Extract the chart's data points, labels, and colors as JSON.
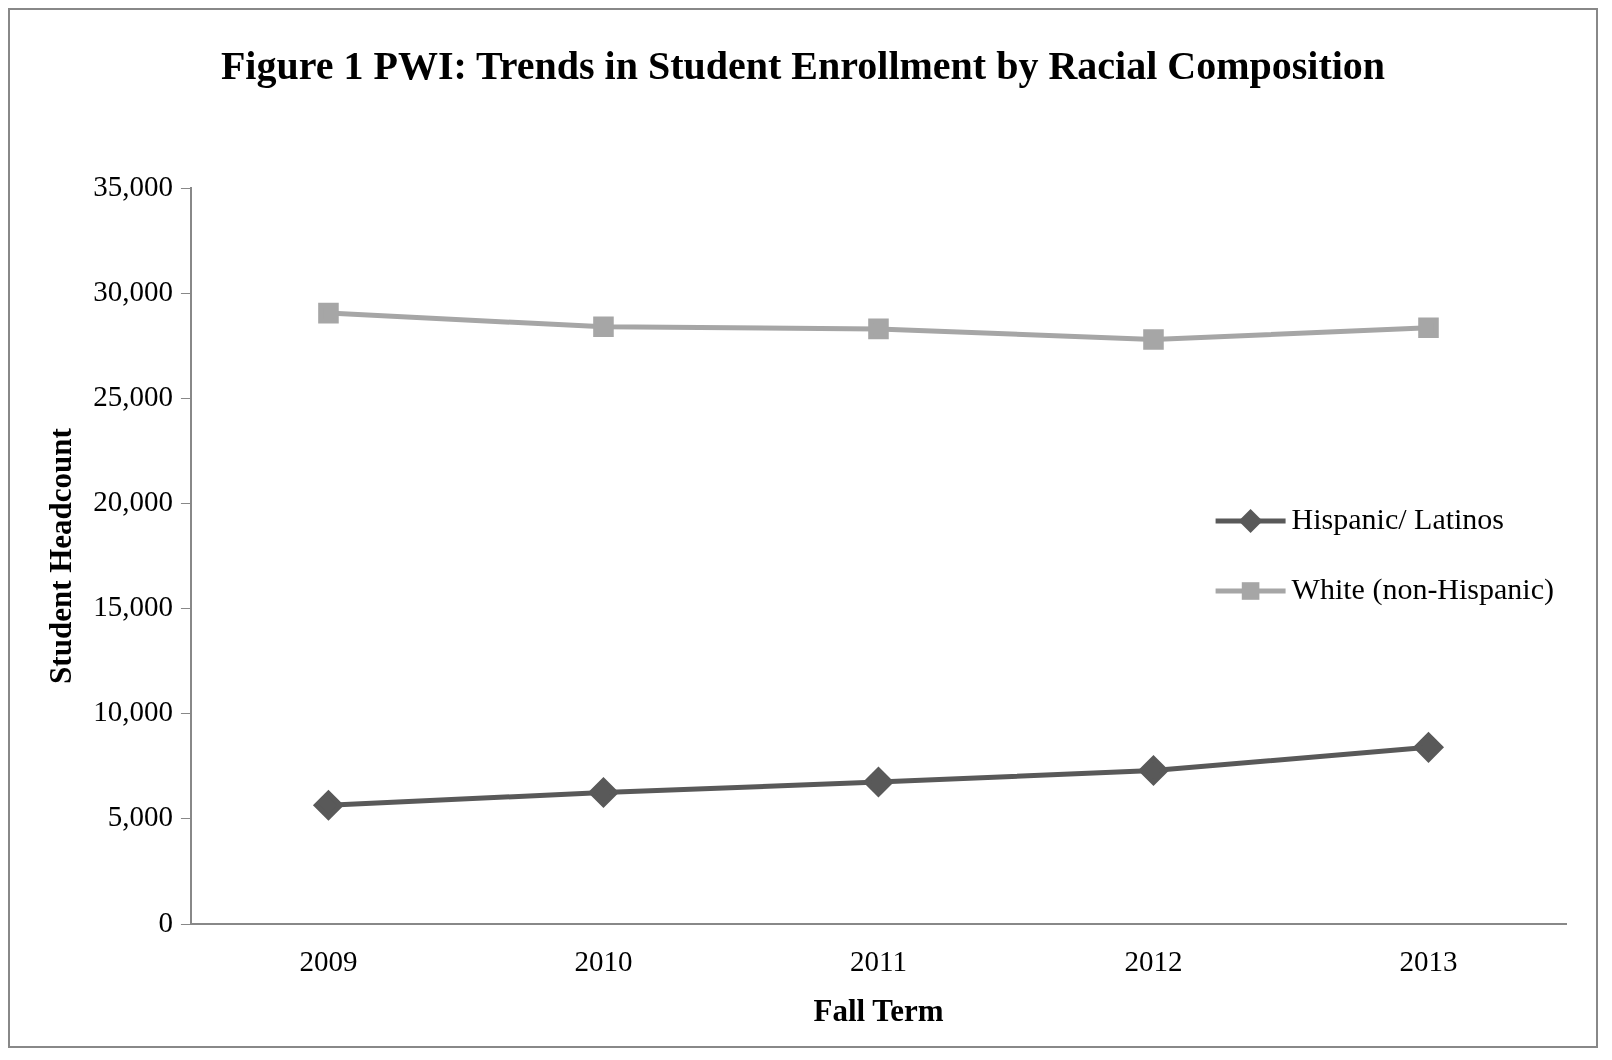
{
  "chart_data": {
    "type": "line",
    "title": "Figure 1 PWI: Trends in Student Enrollment by Racial Composition",
    "xlabel": "Fall Term",
    "ylabel": "Student Headcount",
    "categories": [
      "2009",
      "2010",
      "2011",
      "2012",
      "2013"
    ],
    "series": [
      {
        "name": "Hispanic/ Latinos",
        "color": "#595959",
        "marker": "diamond",
        "values": [
          5650,
          6250,
          6750,
          7300,
          8400
        ]
      },
      {
        "name": "White (non-Hispanic)",
        "color": "#a6a6a6",
        "marker": "square",
        "values": [
          29050,
          28400,
          28300,
          27800,
          28350
        ]
      }
    ],
    "ylim": [
      0,
      35000
    ],
    "yticks": [
      0,
      {
        "value": 5000,
        "label": "5,000"
      },
      {
        "value": 10000,
        "label": "10,000"
      },
      {
        "value": 15000,
        "label": "15,000"
      },
      {
        "value": 20000,
        "label": "20,000"
      },
      {
        "value": 25000,
        "label": "25,000"
      },
      {
        "value": 30000,
        "label": "30,000"
      },
      {
        "value": 35000,
        "label": "35,000"
      }
    ],
    "grid": false,
    "legend": "right"
  }
}
